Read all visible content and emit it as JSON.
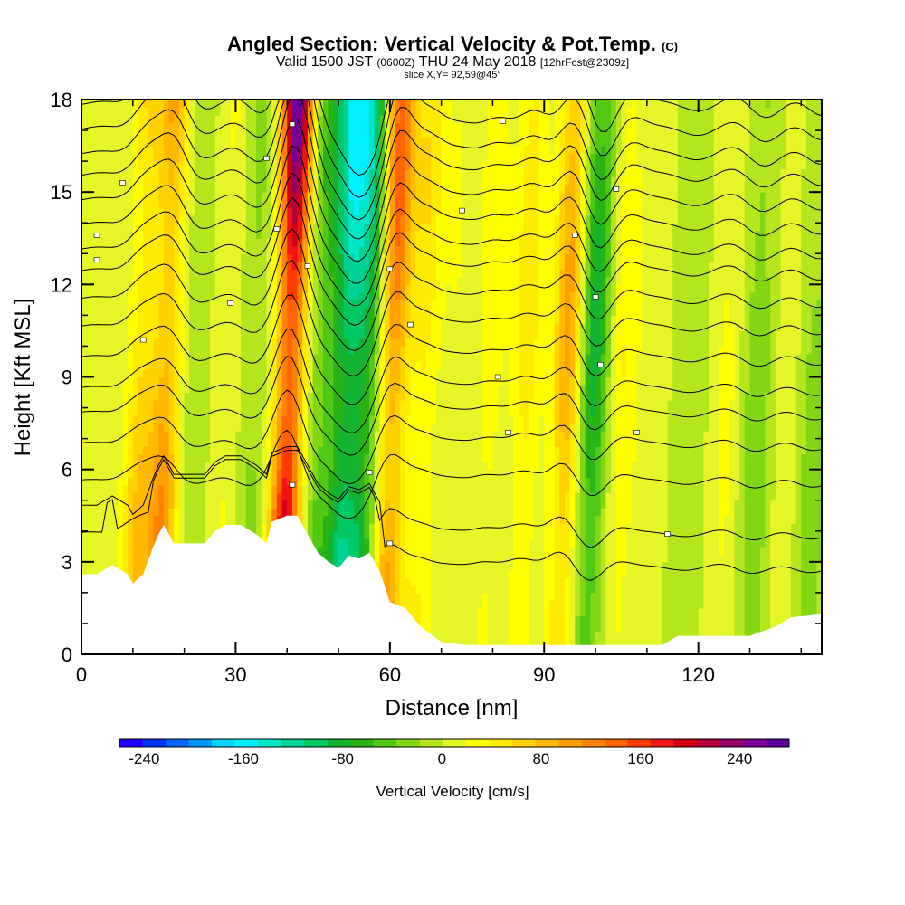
{
  "chart_data": {
    "type": "heatmap",
    "title_main": "Angled Section: Vertical Velocity & Pot.Temp.",
    "title_unit": "(C)",
    "subtitle_prefix": "Valid 1500 JST",
    "subtitle_utc": "(0600Z)",
    "subtitle_date": "THU 24 May 2018",
    "subtitle_fcst": "[12hrFcst@2309z]",
    "slice_label": "slice X,Y= 92,59@45°",
    "xlabel": "Distance [nm]",
    "ylabel": "Height [Kft MSL]",
    "xlim": [
      0,
      144
    ],
    "ylim": [
      0,
      18
    ],
    "x_ticks": [
      0,
      30,
      60,
      90,
      120
    ],
    "y_ticks": [
      0,
      3,
      6,
      9,
      12,
      15,
      18
    ],
    "colorbar": {
      "label": "Vertical Velocity [cm/s]",
      "range": [
        -260,
        280
      ],
      "tick_values": [
        -240,
        -160,
        -80,
        0,
        80,
        160,
        240
      ],
      "tick_labels": [
        "-240",
        "-160",
        "-80",
        "0",
        "80",
        "160",
        "240"
      ],
      "colors": [
        "#1e00ff",
        "#0032ff",
        "#0064ff",
        "#0096ff",
        "#00d2ff",
        "#00f0ff",
        "#00e6c8",
        "#00d296",
        "#00c864",
        "#14b432",
        "#28b414",
        "#50c814",
        "#82d614",
        "#b4e61e",
        "#e6f528",
        "#ffff00",
        "#ffeb00",
        "#ffd200",
        "#ffb900",
        "#ffa000",
        "#ff8200",
        "#ff6400",
        "#ff3c00",
        "#f01414",
        "#d20014",
        "#b4003c",
        "#960064",
        "#780096",
        "#5a00a0"
      ]
    },
    "vertical_velocity_bands": [
      {
        "x": 2,
        "w": 0.12
      },
      {
        "x": 11,
        "w": 0.75
      },
      {
        "x": 16,
        "w": 1.2
      },
      {
        "x": 21,
        "w": -0.2
      },
      {
        "x": 28,
        "w": 0.25
      },
      {
        "x": 33,
        "w": -0.3
      },
      {
        "x": 40,
        "w": 2.7
      },
      {
        "x": 46,
        "w": -0.6
      },
      {
        "x": 51,
        "w": -1.4
      },
      {
        "x": 55,
        "w": -1.1
      },
      {
        "x": 60,
        "w": 1.5
      },
      {
        "x": 66,
        "w": 0.55
      },
      {
        "x": 72,
        "w": 0.2
      },
      {
        "x": 79,
        "w": 0.35
      },
      {
        "x": 86,
        "w": 0.55
      },
      {
        "x": 94,
        "w": 1.05
      },
      {
        "x": 99,
        "w": -0.9
      },
      {
        "x": 105,
        "w": 0.4
      },
      {
        "x": 111,
        "w": 0.1
      },
      {
        "x": 118,
        "w": -0.15
      },
      {
        "x": 125,
        "w": 0.25
      },
      {
        "x": 131,
        "w": -0.35
      },
      {
        "x": 137,
        "w": 0.15
      },
      {
        "x": 142,
        "w": -0.3
      }
    ],
    "terrain_profile": {
      "x": [
        0,
        3,
        6,
        9,
        10,
        12,
        14,
        15,
        16,
        18,
        21,
        24,
        26,
        28,
        31,
        34,
        36,
        37,
        40,
        42,
        44,
        46,
        48,
        50,
        52,
        54,
        56,
        58,
        60,
        63,
        66,
        70,
        75,
        80,
        85,
        90,
        95,
        100,
        105,
        110,
        113,
        116,
        120,
        125,
        130,
        135,
        138,
        144
      ],
      "h": [
        2.6,
        2.6,
        2.9,
        2.6,
        2.3,
        2.6,
        3.5,
        3.9,
        4.2,
        3.6,
        3.6,
        3.6,
        4.0,
        4.2,
        4.2,
        3.9,
        3.6,
        4.3,
        4.5,
        4.5,
        3.9,
        3.3,
        3.0,
        2.8,
        3.2,
        3.1,
        3.3,
        2.7,
        1.7,
        1.5,
        0.9,
        0.4,
        0.3,
        0.3,
        0.3,
        0.3,
        0.3,
        0.3,
        0.3,
        0.3,
        0.3,
        0.6,
        0.6,
        0.6,
        0.6,
        0.9,
        1.2,
        1.3
      ]
    },
    "theta_contour_base_heights": [
      2.8,
      3.9,
      5.6,
      6.8,
      7.8,
      8.6,
      9.6,
      10.6,
      11.5,
      12.4,
      13.1,
      13.9,
      14.7,
      15.5,
      16.2,
      17.0,
      17.8
    ],
    "contour_label_points": [
      {
        "x": 8,
        "y": 15.3
      },
      {
        "x": 3,
        "y": 13.6
      },
      {
        "x": 3,
        "y": 12.8
      },
      {
        "x": 12,
        "y": 10.2
      },
      {
        "x": 29,
        "y": 11.4
      },
      {
        "x": 36,
        "y": 16.1
      },
      {
        "x": 38,
        "y": 13.8
      },
      {
        "x": 41,
        "y": 17.2
      },
      {
        "x": 44,
        "y": 12.6
      },
      {
        "x": 41,
        "y": 5.5
      },
      {
        "x": 56,
        "y": 5.9
      },
      {
        "x": 60,
        "y": 12.5
      },
      {
        "x": 64,
        "y": 10.7
      },
      {
        "x": 60,
        "y": 3.6
      },
      {
        "x": 74,
        "y": 14.4
      },
      {
        "x": 82,
        "y": 17.3
      },
      {
        "x": 81,
        "y": 9.0
      },
      {
        "x": 83,
        "y": 7.2
      },
      {
        "x": 96,
        "y": 13.6
      },
      {
        "x": 100,
        "y": 11.6
      },
      {
        "x": 101,
        "y": 9.4
      },
      {
        "x": 104,
        "y": 15.1
      },
      {
        "x": 108,
        "y": 7.2
      },
      {
        "x": 114,
        "y": 3.9
      }
    ]
  }
}
